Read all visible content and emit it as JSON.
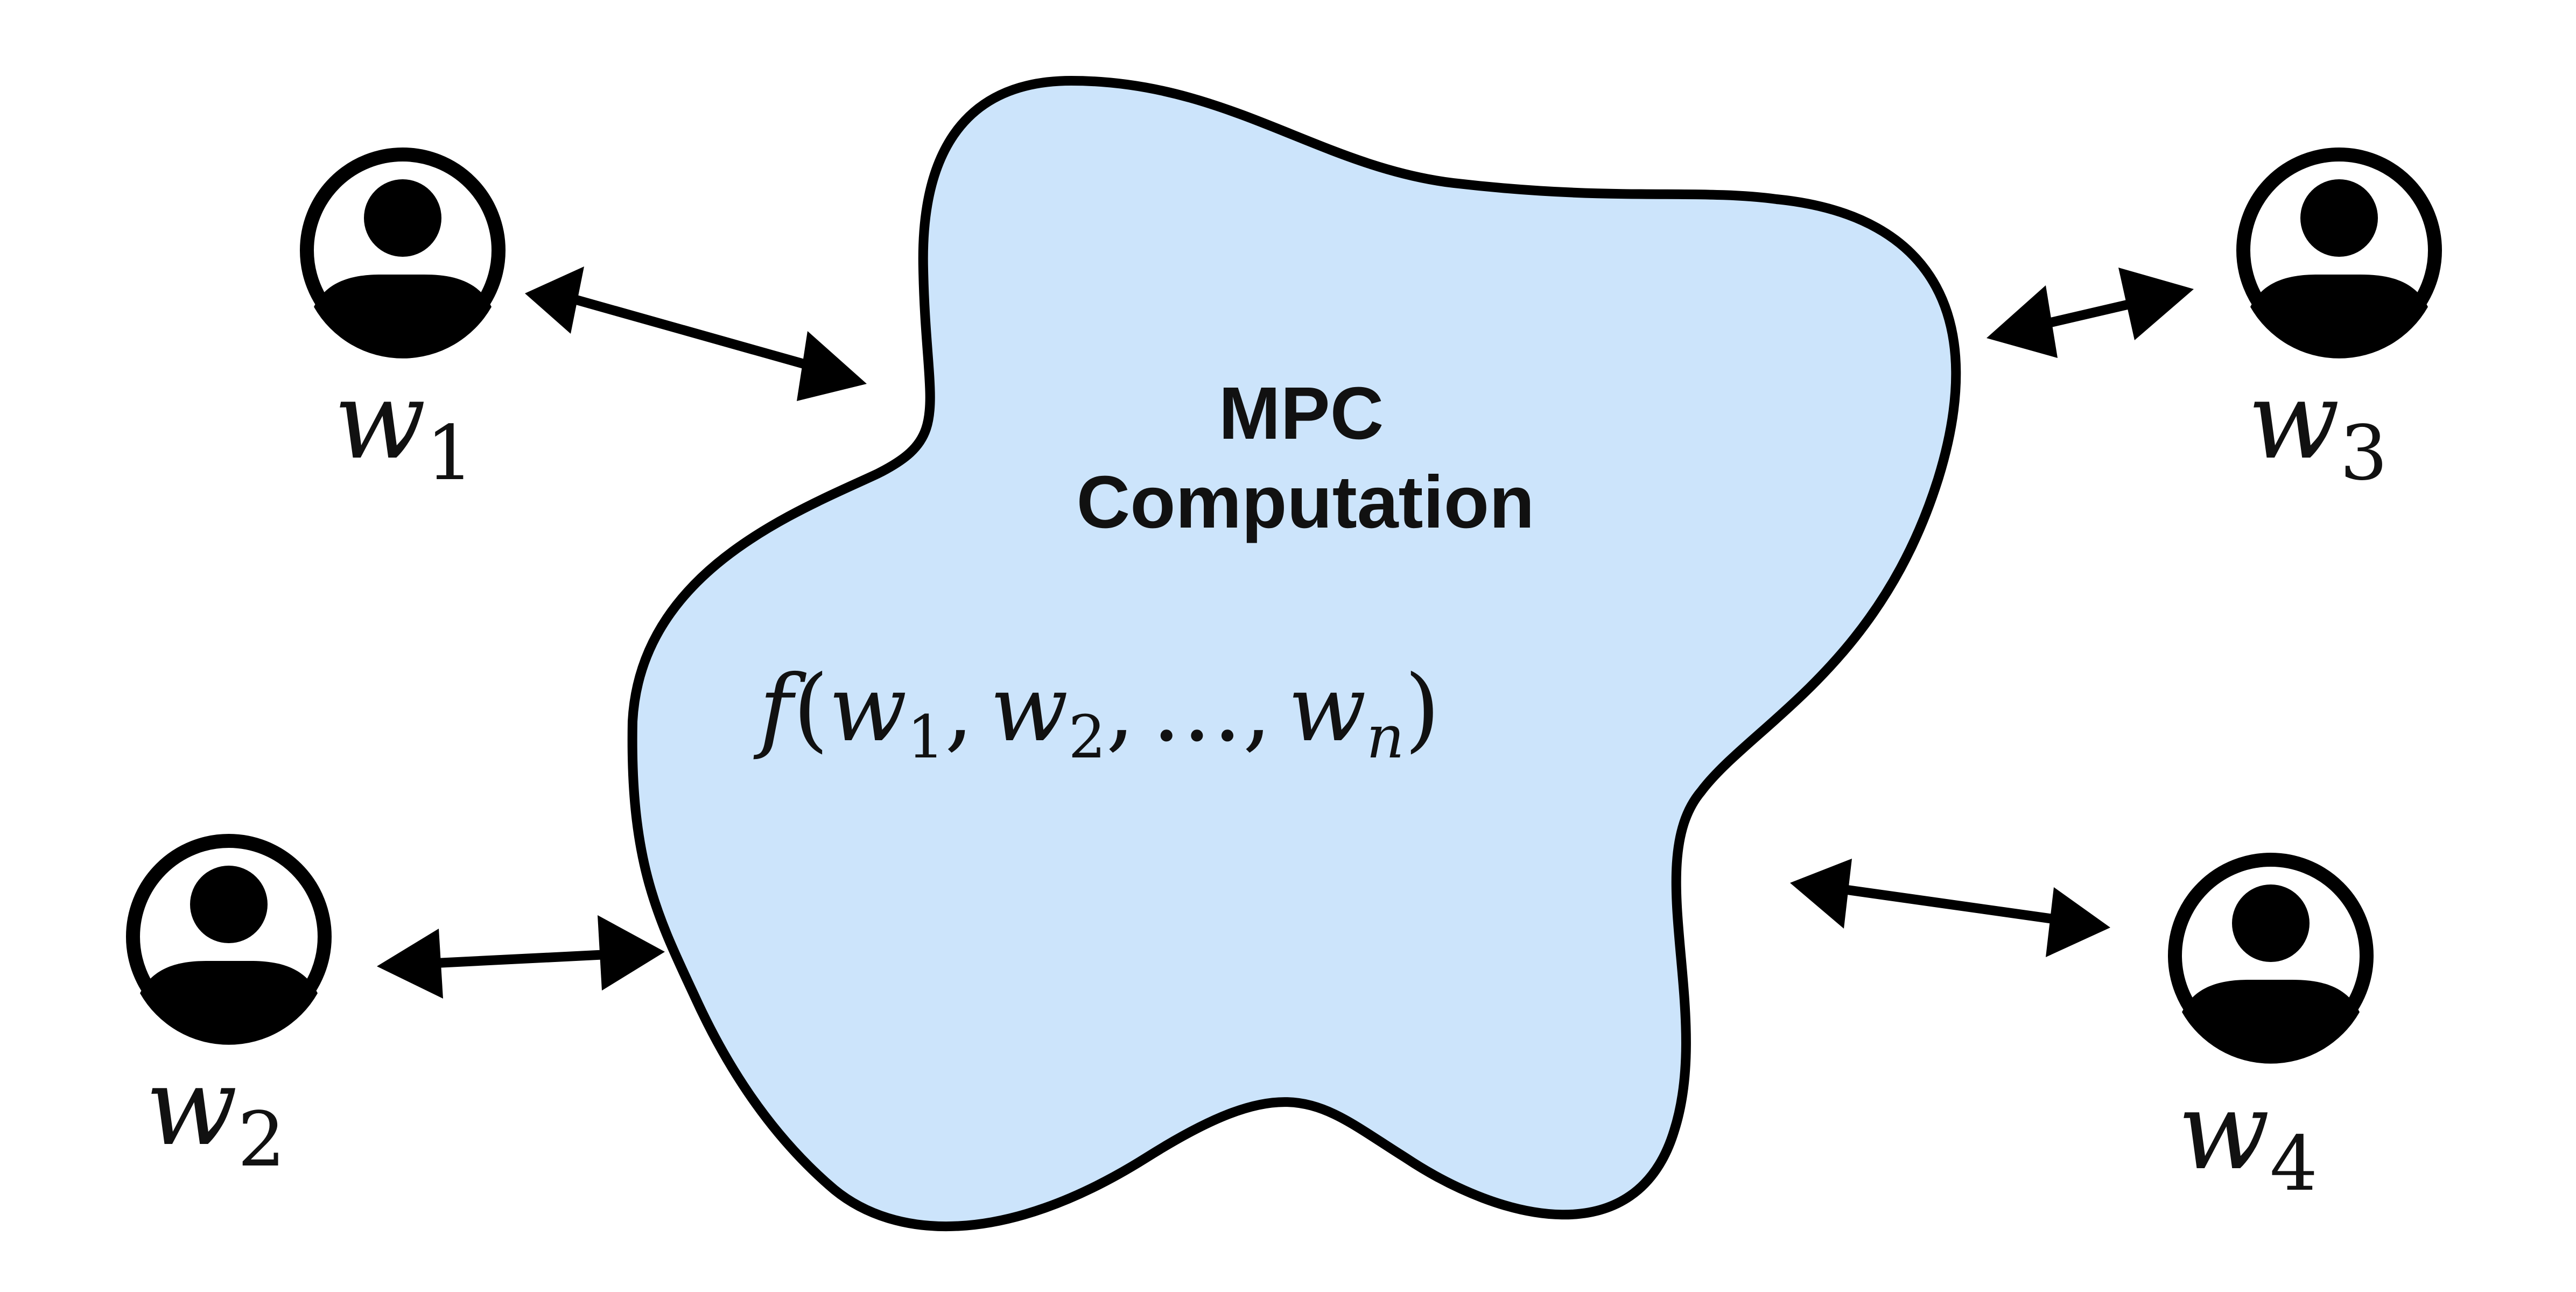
{
  "colors": {
    "blob_fill": "#cce4fb",
    "stroke": "#000000",
    "text": "#111111"
  },
  "center": {
    "title_line1": "MPC",
    "title_line2": "Computation",
    "function": {
      "f": "f",
      "open": "(",
      "w": "w",
      "sub1": "1",
      "sub2": "2",
      "subn": "n",
      "comma": ",",
      "dots": "…",
      "close": ")"
    }
  },
  "parties": [
    {
      "symbol": "w",
      "index": "1",
      "icon": "user-icon"
    },
    {
      "symbol": "w",
      "index": "2",
      "icon": "user-icon"
    },
    {
      "symbol": "w",
      "index": "3",
      "icon": "user-icon"
    },
    {
      "symbol": "w",
      "index": "4",
      "icon": "user-icon"
    }
  ]
}
